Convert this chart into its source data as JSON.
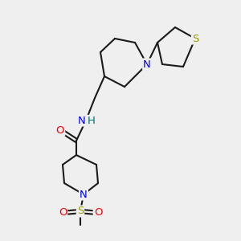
{
  "background_color": "#efefef",
  "bond_color": "#1a1a1a",
  "atom_colors": {
    "N": "#0000ff",
    "O": "#ff0000",
    "S": "#999900",
    "H": "#007070"
  },
  "figsize": [
    3.0,
    3.0
  ],
  "dpi": 100,
  "lw": 1.5
}
